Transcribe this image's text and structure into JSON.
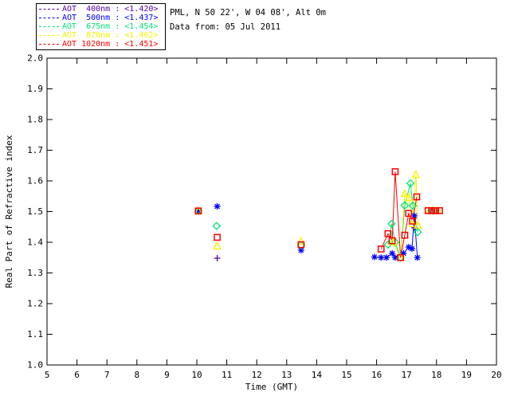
{
  "header": {
    "line1": "PML, N 50 22', W 04 08', Alt 0m",
    "line2": "Data from: 05 Jul 2011"
  },
  "legend": {
    "entries": [
      {
        "text": "AOT  400nm : <1.420>",
        "color": "#5500AB"
      },
      {
        "text": "AOT  500nm : <1.437>",
        "color": "#0000FF"
      },
      {
        "text": "AOT  675nm : <1.454>",
        "color": "#00E673"
      },
      {
        "text": "AOT  870nm : <1.462>",
        "color": "#F2F200"
      },
      {
        "text": "AOT 1020nm : <1.451>",
        "color": "#FF0000"
      }
    ]
  },
  "chart_data": {
    "type": "scatter",
    "title": "",
    "xlabel": "Time (GMT)",
    "ylabel": "Real Part of Refractive index",
    "xlim": [
      5,
      20
    ],
    "ylim": [
      1.0,
      2.0
    ],
    "grid": false,
    "legend_position": "top-left",
    "xticks": [
      "5",
      "6",
      "7",
      "8",
      "9",
      "10",
      "11",
      "12",
      "13",
      "14",
      "15",
      "16",
      "17",
      "18",
      "19",
      "20"
    ],
    "yticks": [
      "1.0",
      "1.1",
      "1.2",
      "1.3",
      "1.4",
      "1.5",
      "1.6",
      "1.7",
      "1.8",
      "1.9",
      "2.0"
    ],
    "series": [
      {
        "name": "AOT 400nm",
        "mean": "<1.420>",
        "color": "#5500AB",
        "marker": "plus",
        "points": [
          [
            10.68,
            1.348
          ],
          [
            17.26,
            1.447
          ]
        ],
        "line": []
      },
      {
        "name": "AOT 500nm",
        "mean": "<1.437>",
        "color": "#0000FF",
        "marker": "asterisk",
        "points": [
          [
            10.05,
            1.502
          ],
          [
            10.68,
            1.517
          ],
          [
            13.48,
            1.374
          ],
          [
            17.82,
            1.503
          ],
          [
            17.97,
            1.503
          ]
        ],
        "line": [
          [
            15.93,
            1.352
          ],
          [
            16.15,
            1.35
          ],
          [
            16.33,
            1.35
          ],
          [
            16.52,
            1.364
          ],
          [
            16.62,
            1.35
          ],
          [
            16.9,
            1.364
          ],
          [
            17.07,
            1.384
          ],
          [
            17.18,
            1.379
          ],
          [
            17.26,
            1.486
          ],
          [
            17.36,
            1.35
          ]
        ]
      },
      {
        "name": "AOT 675nm",
        "mean": "<1.454>",
        "color": "#00E673",
        "marker": "diamond",
        "points": [
          [
            10.05,
            1.502
          ],
          [
            10.66,
            1.453
          ],
          [
            13.48,
            1.39
          ],
          [
            17.87,
            1.503
          ]
        ],
        "line": [
          [
            16.38,
            1.392
          ],
          [
            16.5,
            1.46
          ],
          [
            16.62,
            1.4
          ],
          [
            16.8,
            1.35
          ],
          [
            16.94,
            1.52
          ],
          [
            17.13,
            1.592
          ],
          [
            17.21,
            1.519
          ],
          [
            17.37,
            1.433
          ]
        ]
      },
      {
        "name": "AOT 870nm",
        "mean": "<1.462>",
        "color": "#F2F200",
        "marker": "triangle",
        "points": [
          [
            10.05,
            1.502
          ],
          [
            10.68,
            1.387
          ],
          [
            13.48,
            1.403
          ],
          [
            17.76,
            1.503
          ],
          [
            17.92,
            1.503
          ],
          [
            18.05,
            1.503
          ]
        ],
        "line": [
          [
            16.55,
            1.4
          ],
          [
            16.8,
            1.35
          ],
          [
            16.94,
            1.558
          ],
          [
            17.07,
            1.545
          ],
          [
            17.2,
            1.46
          ],
          [
            17.31,
            1.62
          ],
          [
            17.38,
            1.455
          ]
        ]
      },
      {
        "name": "AOT 1020nm",
        "mean": "<1.451>",
        "color": "#FF0000",
        "marker": "square",
        "points": [
          [
            10.05,
            1.502
          ],
          [
            10.68,
            1.416
          ],
          [
            13.48,
            1.392
          ],
          [
            17.72,
            1.503
          ],
          [
            17.84,
            1.503
          ],
          [
            17.97,
            1.503
          ],
          [
            18.1,
            1.503
          ]
        ],
        "line": [
          [
            16.15,
            1.378
          ],
          [
            16.38,
            1.428
          ],
          [
            16.52,
            1.405
          ],
          [
            16.62,
            1.63
          ],
          [
            16.8,
            1.35
          ],
          [
            16.94,
            1.423
          ],
          [
            17.07,
            1.494
          ],
          [
            17.2,
            1.469
          ],
          [
            17.34,
            1.548
          ]
        ]
      }
    ]
  }
}
